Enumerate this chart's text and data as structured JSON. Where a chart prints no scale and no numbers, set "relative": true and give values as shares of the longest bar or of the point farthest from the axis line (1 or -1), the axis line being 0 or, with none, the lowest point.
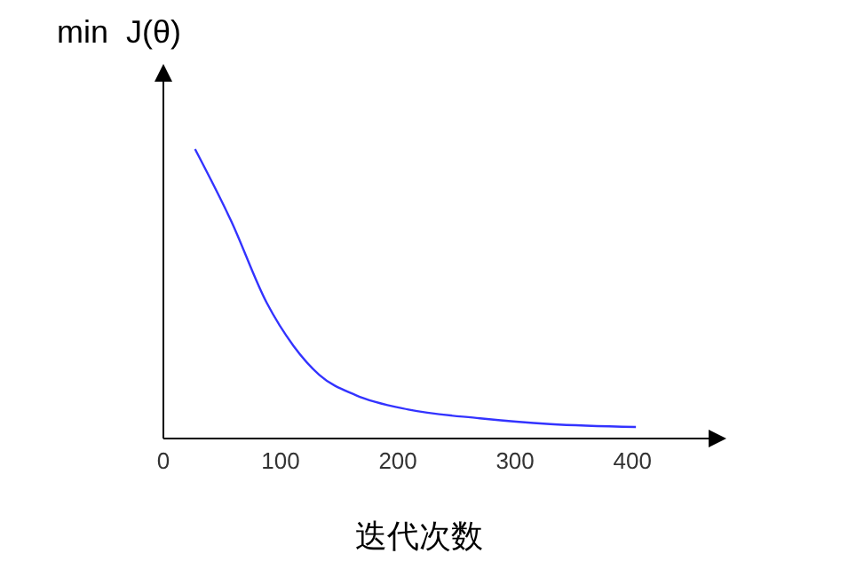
{
  "chart_data": {
    "type": "line",
    "ylabel": "min  J(θ)",
    "xlabel": "迭代次数",
    "relative": true,
    "xlim": [
      0,
      465
    ],
    "xticks": [
      0,
      100,
      200,
      300,
      400
    ],
    "grid": false,
    "series": [
      {
        "color": "#3333ff",
        "x": [
          27,
          58,
          88,
          111,
          133,
          164,
          209,
          270,
          330,
          403
        ],
        "values": [
          1,
          0.75,
          0.47,
          0.32,
          0.22,
          0.15,
          0.1,
          0.07,
          0.05,
          0.04
        ]
      }
    ]
  }
}
